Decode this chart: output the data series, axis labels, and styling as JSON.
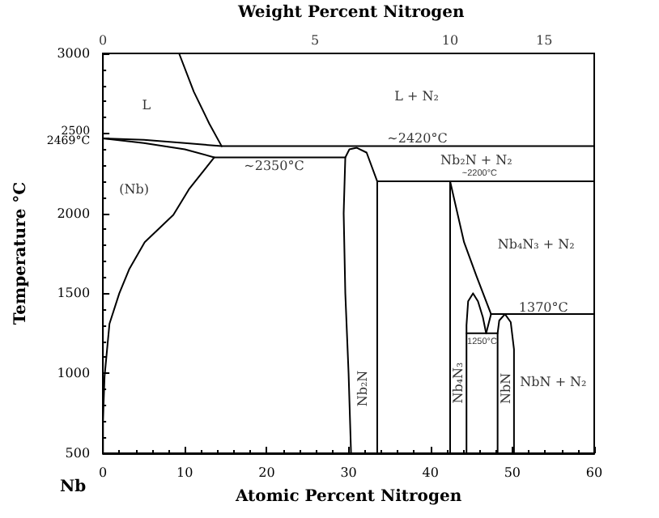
{
  "chart_data": {
    "type": "line",
    "xlabel": "Atomic Percent Nitrogen",
    "ylabel": "Temperature °C",
    "xlim": [
      0,
      60
    ],
    "xticks": [
      0,
      10,
      20,
      30,
      40,
      50,
      60
    ],
    "ylim": [
      500,
      3000
    ],
    "yticks": [
      500,
      1000,
      1500,
      2000,
      {
        "value": 2469,
        "label": "2469°C"
      },
      2500,
      3000
    ],
    "grid": false,
    "marker": "none",
    "line_style": "solid",
    "series": [
      {
        "color": "#000000",
        "x": [
          0,
          5,
          10,
          14.5,
          60
        ],
        "values": [
          2469,
          2460,
          2440,
          2420,
          2420
        ]
      },
      {
        "color": "#000000",
        "x": [
          0,
          5,
          10,
          13.6,
          29.6
        ],
        "values": [
          2469,
          2440,
          2400,
          2350,
          2350
        ]
      },
      {
        "color": "#000000",
        "x": [
          9.3,
          11.1,
          13.0,
          14.5
        ],
        "values": [
          3000,
          2760,
          2560,
          2420
        ]
      },
      {
        "color": "#000000",
        "x": [
          13.6,
          10.5,
          8.6,
          5.1,
          3.2,
          2.0,
          0.8,
          0.2,
          0,
          0
        ],
        "values": [
          2350,
          2150,
          1990,
          1820,
          1650,
          1500,
          1310,
          980,
          700,
          500
        ]
      },
      {
        "color": "#000000",
        "x": [
          30.3,
          30.0,
          29.6,
          29.4,
          29.6,
          30.1,
          31.0,
          32.2,
          33.5,
          33.5
        ],
        "values": [
          500,
          1000,
          1500,
          2000,
          2350,
          2400,
          2410,
          2380,
          2200,
          500
        ]
      },
      {
        "color": "#000000",
        "x": [
          33.5,
          60
        ],
        "values": [
          2200,
          2200
        ]
      },
      {
        "color": "#000000",
        "x": [
          42.4,
          42.4
        ],
        "values": [
          500,
          2200
        ]
      },
      {
        "color": "#000000",
        "x": [
          42.4,
          44.1,
          45.6,
          47.4,
          60
        ],
        "values": [
          2200,
          1820,
          1610,
          1370,
          1370
        ]
      },
      {
        "color": "#000000",
        "x": [
          47.4,
          46.8
        ],
        "values": [
          1370,
          1250
        ]
      },
      {
        "color": "#000000",
        "x": [
          44.4,
          48.2
        ],
        "values": [
          1250,
          1250
        ]
      },
      {
        "color": "#000000",
        "x": [
          44.4,
          44.4,
          44.6,
          45.2,
          45.8,
          46.4,
          46.8
        ],
        "values": [
          500,
          1300,
          1450,
          1500,
          1450,
          1350,
          1250
        ]
      },
      {
        "color": "#000000",
        "x": [
          48.2,
          48.2,
          48.4,
          49.1,
          49.8,
          50.2,
          50.2
        ],
        "values": [
          500,
          1250,
          1330,
          1370,
          1320,
          1150,
          500
        ]
      }
    ],
    "annotations": [
      "L",
      "(Nb)",
      "L + N₂",
      "Nb₂N + N₂",
      "Nb₄N₃ + N₂",
      "NbN + N₂",
      "Nb₂N",
      "Nb₄N₃",
      "NbN",
      "Nb",
      "~2350°C",
      "Weight Percent Nitrogen",
      "0",
      "5",
      "10",
      "15",
      "1250°C",
      {
        "text": "~2420°C",
        "x": 38.4,
        "y": 2470
      },
      {
        "text": "~2200°C",
        "x": 46,
        "y": 2245
      },
      {
        "text": "1370°C",
        "x": 53.8,
        "y": 1410
      }
    ]
  }
}
